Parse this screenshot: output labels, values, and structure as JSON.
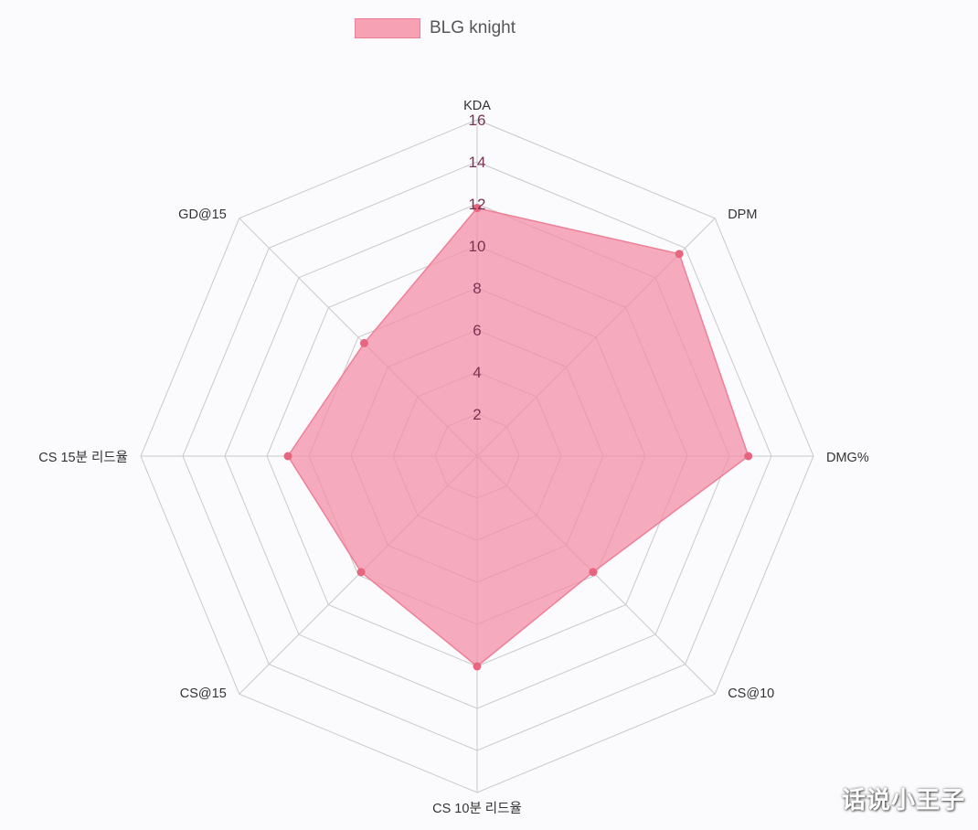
{
  "chart_data": {
    "type": "radar",
    "axes": [
      "KDA",
      "DPM",
      "DMG%",
      "CS@10",
      "CS 10분 리드율",
      "CS@15",
      "CS 15분 리드율",
      "GD@15"
    ],
    "series": [
      {
        "name": "BLG knight",
        "values": [
          11.8,
          13.6,
          12.9,
          7.8,
          10.0,
          7.8,
          9.0,
          7.6
        ],
        "color": "#f48aa3"
      }
    ],
    "r_range": [
      0,
      16
    ],
    "r_ticks": [
      "2",
      "4",
      "6",
      "8",
      "10",
      "12",
      "14",
      "16"
    ],
    "grid_levels": 8,
    "legend_position": "top",
    "grid": true
  },
  "watermark": "话说小王子",
  "colors": {
    "fill": "#f48aa3",
    "stroke": "#ee7f98",
    "grid": "#c9c9c9",
    "background": "#fbfbfd"
  }
}
